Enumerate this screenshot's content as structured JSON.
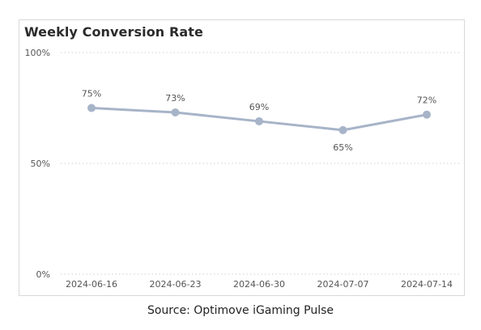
{
  "chart_data": {
    "type": "line",
    "title": "Weekly Conversion Rate",
    "categories": [
      "2024-06-16",
      "2024-06-23",
      "2024-06-30",
      "2024-07-07",
      "2024-07-14"
    ],
    "series": [
      {
        "values": [
          75,
          73,
          69,
          65,
          72
        ]
      }
    ],
    "data_labels": [
      "75%",
      "73%",
      "69%",
      "65%",
      "72%"
    ],
    "ylim": [
      0,
      100
    ],
    "y_ticks": [
      0,
      50,
      100
    ],
    "y_tick_labels": [
      "0%",
      "50%",
      "100%"
    ],
    "grid": true,
    "legend": "none",
    "line_color": "#a7b4c8"
  },
  "source": "Source: Optimove iGaming Pulse"
}
